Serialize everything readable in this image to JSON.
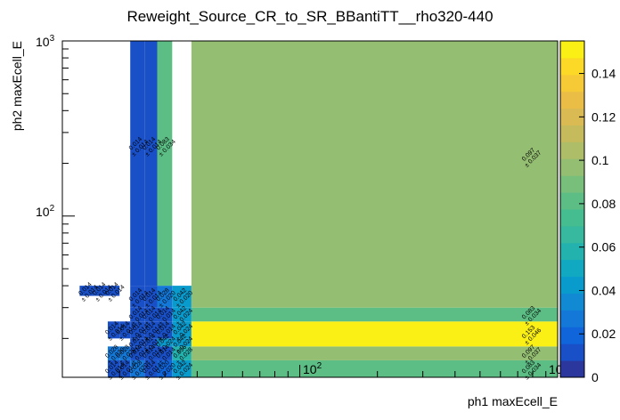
{
  "chart_data": {
    "type": "heatmap",
    "title": "Reweight_Source_CR_to_SR_BBantiTT__rho320-440",
    "xlabel": "ph1 maxEcell_E",
    "ylabel": "ph2 maxEcell_E",
    "x_scale": "log",
    "y_scale": "log",
    "xlim": [
      12,
      1000
    ],
    "ylim": [
      12,
      1000
    ],
    "x_tick_labels": [
      {
        "base": "10",
        "exp": "2",
        "value": 100
      },
      {
        "base": "10",
        "exp": "3",
        "value": 1000
      }
    ],
    "y_tick_labels": [
      {
        "base": "10",
        "exp": "2",
        "value": 100
      },
      {
        "base": "10",
        "exp": "3",
        "value": 1000
      }
    ],
    "zlim": [
      0,
      0.155
    ],
    "colorbar_ticks": [
      "0",
      "0.02",
      "0.04",
      "0.06",
      "0.08",
      "0.1",
      "0.12",
      "0.14"
    ],
    "colorbar_tick_values": [
      0,
      0.02,
      0.04,
      0.06,
      0.08,
      0.1,
      0.12,
      0.14
    ],
    "cells": [
      {
        "x": [
          14,
          16
        ],
        "y": [
          35,
          40
        ],
        "value": 0.014,
        "label": "0.014",
        "err": "± 0.014"
      },
      {
        "x": [
          16,
          18
        ],
        "y": [
          35,
          40
        ],
        "value": 0.014,
        "label": "0.014",
        "err": "± 0.014"
      },
      {
        "x": [
          18,
          20
        ],
        "y": [
          35,
          40
        ],
        "value": 0.014,
        "label": "0.014",
        "err": "± 0.014"
      },
      {
        "x": [
          18,
          20
        ],
        "y": [
          20,
          25
        ],
        "value": 0.014,
        "label": "0.014",
        "err": "± 0.014"
      },
      {
        "x": [
          20,
          22
        ],
        "y": [
          20,
          25
        ],
        "value": 0.014,
        "label": "0.014",
        "err": "± 0.014"
      },
      {
        "x": [
          18,
          20
        ],
        "y": [
          12,
          15
        ],
        "value": 0.014,
        "label": "0.014",
        "err": "± 0.014"
      },
      {
        "x": [
          18,
          20
        ],
        "y": [
          15,
          18
        ],
        "value": 0.028,
        "label": "0.028",
        "err": "± 0.020"
      },
      {
        "x": [
          20,
          22
        ],
        "y": [
          15,
          18
        ],
        "value": 0.028,
        "label": "0.028",
        "err": "± 0.020"
      },
      {
        "x": [
          20,
          22
        ],
        "y": [
          12,
          15
        ],
        "value": 0.014,
        "label": "0.014",
        "err": "± 0.014"
      },
      {
        "x": [
          22,
          25
        ],
        "y": [
          12,
          15
        ],
        "value": 0.028,
        "label": "0.028",
        "err": "± 0.020"
      },
      {
        "x": [
          22,
          25
        ],
        "y": [
          15,
          18
        ],
        "value": 0.014,
        "label": "0.014",
        "err": "± 0.014"
      },
      {
        "x": [
          22,
          25
        ],
        "y": [
          18,
          20
        ],
        "value": 0.014,
        "label": "0.014",
        "err": "± 0.014"
      },
      {
        "x": [
          22,
          25
        ],
        "y": [
          20,
          25
        ],
        "value": 0.014,
        "label": "0.014",
        "err": "± 0.014"
      },
      {
        "x": [
          22,
          25
        ],
        "y": [
          25,
          30
        ],
        "value": 0.014,
        "label": "0.014",
        "err": "± 0.014"
      },
      {
        "x": [
          22,
          25
        ],
        "y": [
          30,
          40
        ],
        "value": 0.014,
        "label": "0.014",
        "err": "± 0.014"
      },
      {
        "x": [
          22,
          25
        ],
        "y": [
          40,
          1000
        ],
        "value": 0.014,
        "label": "0.014",
        "err": "± 0.014"
      },
      {
        "x": [
          25,
          28
        ],
        "y": [
          12,
          15
        ],
        "value": 0.014,
        "label": "0.014",
        "err": "± 0.014"
      },
      {
        "x": [
          25,
          28
        ],
        "y": [
          15,
          18
        ],
        "value": 0.014,
        "label": "0.014",
        "err": "± 0.014"
      },
      {
        "x": [
          25,
          28
        ],
        "y": [
          18,
          20
        ],
        "value": 0.014,
        "label": "0.014",
        "err": "± 0.014"
      },
      {
        "x": [
          25,
          28
        ],
        "y": [
          20,
          25
        ],
        "value": 0.014,
        "label": "0.014",
        "err": "± 0.014"
      },
      {
        "x": [
          25,
          28
        ],
        "y": [
          25,
          30
        ],
        "value": 0.014,
        "label": "0.014",
        "err": "± 0.014"
      },
      {
        "x": [
          25,
          28
        ],
        "y": [
          30,
          40
        ],
        "value": 0.014,
        "label": "0.014",
        "err": "± 0.014"
      },
      {
        "x": [
          25,
          28
        ],
        "y": [
          40,
          1000
        ],
        "value": 0.014,
        "label": "0.014",
        "err": "± 0.014"
      },
      {
        "x": [
          28,
          32
        ],
        "y": [
          12,
          15
        ],
        "value": 0.02,
        "label": "0.020",
        "err": "± 0.020"
      },
      {
        "x": [
          28,
          32
        ],
        "y": [
          15,
          18
        ],
        "value": 0.014,
        "label": "0.014",
        "err": "± 0.014"
      },
      {
        "x": [
          28,
          32
        ],
        "y": [
          18,
          20
        ],
        "value": 0.042,
        "label": "0.042",
        "err": "± 0.024"
      },
      {
        "x": [
          28,
          32
        ],
        "y": [
          20,
          25
        ],
        "value": 0.014,
        "label": "0.014",
        "err": "± 0.014"
      },
      {
        "x": [
          28,
          32
        ],
        "y": [
          25,
          30
        ],
        "value": 0.014,
        "label": "0.014",
        "err": "± 0.014"
      },
      {
        "x": [
          28,
          32
        ],
        "y": [
          30,
          40
        ],
        "value": 0.028,
        "label": "0.028",
        "err": "± 0.020"
      },
      {
        "x": [
          28,
          32
        ],
        "y": [
          40,
          1000
        ],
        "value": 0.083,
        "label": "0.083",
        "err": "± 0.034"
      },
      {
        "x": [
          32,
          38
        ],
        "y": [
          12,
          15
        ],
        "value": 0.042,
        "label": "0.042",
        "err": "± 0.024"
      },
      {
        "x": [
          32,
          38
        ],
        "y": [
          15,
          18
        ],
        "value": 0.056,
        "label": "0.056",
        "err": "± 0.028"
      },
      {
        "x": [
          32,
          38
        ],
        "y": [
          18,
          20
        ],
        "value": 0.042,
        "label": "0.042",
        "err": "± 0.024"
      },
      {
        "x": [
          32,
          38
        ],
        "y": [
          20,
          25
        ],
        "value": 0.042,
        "label": "0.042",
        "err": "± 0.024"
      },
      {
        "x": [
          32,
          38
        ],
        "y": [
          25,
          30
        ],
        "value": 0.042,
        "label": "0.042",
        "err": "± 0.024"
      },
      {
        "x": [
          32,
          38
        ],
        "y": [
          30,
          40
        ],
        "value": 0.042,
        "label": "0.042",
        "err": "± 0.020"
      },
      {
        "x": [
          38,
          1000
        ],
        "y": [
          12,
          15
        ],
        "value": 0.083,
        "label": "0.083",
        "err": "± 0.034"
      },
      {
        "x": [
          38,
          1000
        ],
        "y": [
          15,
          18
        ],
        "value": 0.097,
        "label": "0.097",
        "err": "± 0.037"
      },
      {
        "x": [
          38,
          1000
        ],
        "y": [
          18,
          25
        ],
        "value": 0.153,
        "label": "0.153",
        "err": "± 0.046"
      },
      {
        "x": [
          38,
          1000
        ],
        "y": [
          25,
          30
        ],
        "value": 0.083,
        "label": "0.083",
        "err": "± 0.034"
      },
      {
        "x": [
          38,
          1000
        ],
        "y": [
          30,
          1000
        ],
        "value": 0.097,
        "label": "0.097",
        "err": "± 0.037"
      }
    ]
  }
}
